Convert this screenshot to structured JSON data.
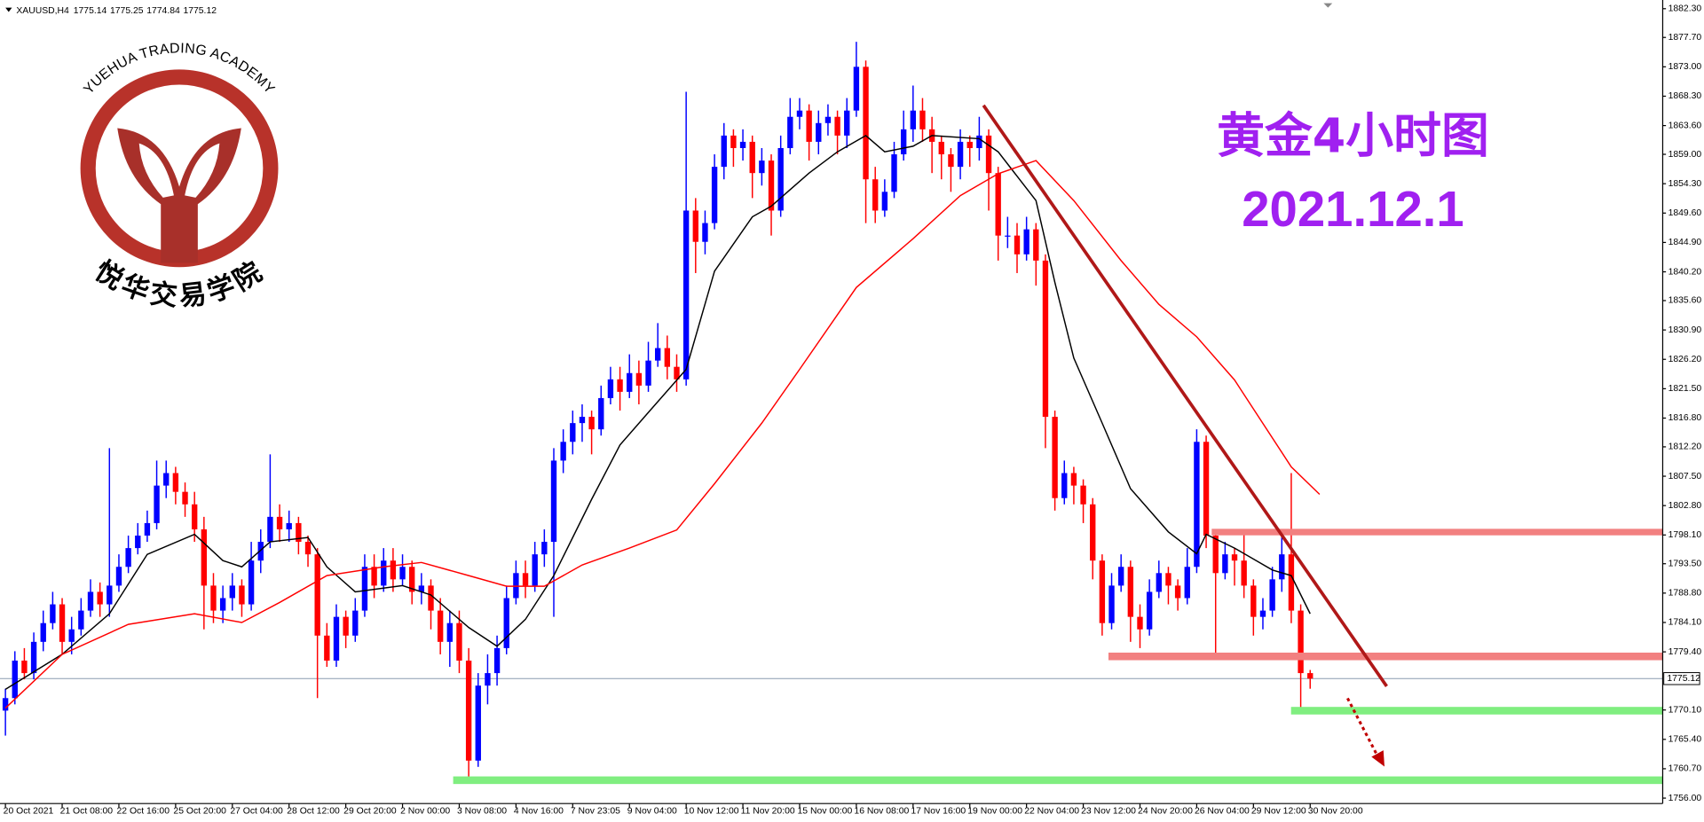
{
  "chart_data": {
    "type": "candlestick",
    "symbol": "XAUUSD,H4",
    "header_prices": [
      1775.14,
      1775.25,
      1774.84,
      1775.12
    ],
    "title": "黄金4小时图",
    "subtitle": "2021.12.1",
    "up_color": "#0000ff",
    "down_color": "#ff0000",
    "ylim": [
      1756,
      1882.3
    ],
    "yticks": [
      {
        "value": 1882.3,
        "label": "1882.30"
      },
      {
        "value": 1877.7,
        "label": "1877.70"
      },
      {
        "value": 1873,
        "label": "1873.00"
      },
      {
        "value": 1868.3,
        "label": "1868.30"
      },
      {
        "value": 1863.6,
        "label": "1863.60"
      },
      {
        "value": 1859,
        "label": "1859.00"
      },
      {
        "value": 1854.3,
        "label": "1854.30"
      },
      {
        "value": 1849.6,
        "label": "1849.60"
      },
      {
        "value": 1844.9,
        "label": "1844.90"
      },
      {
        "value": 1840.2,
        "label": "1840.20"
      },
      {
        "value": 1835.6,
        "label": "1835.60"
      },
      {
        "value": 1830.9,
        "label": "1830.90"
      },
      {
        "value": 1826.2,
        "label": "1826.20"
      },
      {
        "value": 1821.5,
        "label": "1821.50"
      },
      {
        "value": 1816.8,
        "label": "1816.80"
      },
      {
        "value": 1812.2,
        "label": "1812.20"
      },
      {
        "value": 1807.5,
        "label": "1807.50"
      },
      {
        "value": 1802.8,
        "label": "1802.80"
      },
      {
        "value": 1798.1,
        "label": "1798.10"
      },
      {
        "value": 1793.5,
        "label": "1793.50"
      },
      {
        "value": 1788.8,
        "label": "1788.80"
      },
      {
        "value": 1784.1,
        "label": "1784.10"
      },
      {
        "value": 1779.4,
        "label": "1779.40"
      },
      {
        "value": 1770.1,
        "label": "1770.10"
      },
      {
        "value": 1765.4,
        "label": "1765.40"
      },
      {
        "value": 1760.7,
        "label": "1760.70"
      },
      {
        "value": 1756,
        "label": "1756.00"
      }
    ],
    "last_price": 1775.12,
    "xticks": [
      {
        "value": 0,
        "label": "20 Oct 2021"
      },
      {
        "value": 6,
        "label": "21 Oct 08:00"
      },
      {
        "value": 12,
        "label": "22 Oct 16:00"
      },
      {
        "value": 18,
        "label": "25 Oct 20:00"
      },
      {
        "value": 24,
        "label": "27 Oct 04:00"
      },
      {
        "value": 30,
        "label": "28 Oct 12:00"
      },
      {
        "value": 36,
        "label": "29 Oct 20:00"
      },
      {
        "value": 42,
        "label": "2 Nov 00:00"
      },
      {
        "value": 48,
        "label": "3 Nov 08:00"
      },
      {
        "value": 54,
        "label": "4 Nov 16:00"
      },
      {
        "value": 60,
        "label": "7 Nov 23:05"
      },
      {
        "value": 66,
        "label": "9 Nov 04:00"
      },
      {
        "value": 72,
        "label": "10 Nov 12:00"
      },
      {
        "value": 78,
        "label": "11 Nov 20:00"
      },
      {
        "value": 84,
        "label": "15 Nov 00:00"
      },
      {
        "value": 90,
        "label": "16 Nov 08:00"
      },
      {
        "value": 96,
        "label": "17 Nov 16:00"
      },
      {
        "value": 102,
        "label": "19 Nov 00:00"
      },
      {
        "value": 108,
        "label": "22 Nov 04:00"
      },
      {
        "value": 114,
        "label": "23 Nov 12:00"
      },
      {
        "value": 120,
        "label": "24 Nov 20:00"
      },
      {
        "value": 126,
        "label": "26 Nov 04:00"
      },
      {
        "value": 132,
        "label": "29 Nov 12:00"
      },
      {
        "value": 138,
        "label": "30 Nov 20:00"
      }
    ],
    "ohlc": [
      [
        1770,
        1773.5,
        1766,
        1772
      ],
      [
        1772,
        1779.5,
        1771,
        1778
      ],
      [
        1778,
        1780,
        1775,
        1776
      ],
      [
        1776,
        1782.5,
        1775,
        1781
      ],
      [
        1781,
        1786,
        1779.5,
        1784
      ],
      [
        1784,
        1789,
        1783,
        1787
      ],
      [
        1787,
        1788,
        1779,
        1781
      ],
      [
        1781,
        1785,
        1779,
        1783
      ],
      [
        1783,
        1788,
        1782,
        1786
      ],
      [
        1786,
        1791,
        1785,
        1789
      ],
      [
        1789,
        1790.5,
        1785,
        1787
      ],
      [
        1787,
        1812,
        1785,
        1790
      ],
      [
        1790,
        1795,
        1789,
        1793
      ],
      [
        1793,
        1798,
        1792,
        1796
      ],
      [
        1796,
        1800,
        1795,
        1798
      ],
      [
        1798,
        1802,
        1797,
        1800
      ],
      [
        1800,
        1810,
        1799,
        1806
      ],
      [
        1806,
        1810,
        1804,
        1808
      ],
      [
        1808,
        1809,
        1803,
        1805
      ],
      [
        1805,
        1806.5,
        1801,
        1803
      ],
      [
        1803,
        1805,
        1797,
        1799
      ],
      [
        1799,
        1801,
        1783,
        1790
      ],
      [
        1790,
        1792,
        1784,
        1786
      ],
      [
        1786,
        1790,
        1784,
        1788
      ],
      [
        1788,
        1792,
        1786,
        1790
      ],
      [
        1790,
        1791,
        1785,
        1787
      ],
      [
        1787,
        1797,
        1786,
        1794
      ],
      [
        1794,
        1799,
        1792,
        1797
      ],
      [
        1797,
        1811,
        1796,
        1801
      ],
      [
        1801,
        1803,
        1797,
        1799
      ],
      [
        1799,
        1802,
        1797,
        1800
      ],
      [
        1800,
        1801,
        1795,
        1797
      ],
      [
        1797,
        1798,
        1793,
        1795
      ],
      [
        1795,
        1796,
        1772,
        1782
      ],
      [
        1782,
        1784,
        1777,
        1778
      ],
      [
        1778,
        1787,
        1777,
        1785
      ],
      [
        1785,
        1786,
        1780,
        1782
      ],
      [
        1782,
        1788,
        1781,
        1786
      ],
      [
        1786,
        1795,
        1785,
        1793
      ],
      [
        1793,
        1795,
        1788,
        1790
      ],
      [
        1790,
        1796,
        1789,
        1794
      ],
      [
        1794,
        1796,
        1789,
        1791
      ],
      [
        1791,
        1795,
        1790,
        1793
      ],
      [
        1793,
        1794,
        1787,
        1789
      ],
      [
        1789,
        1792,
        1787,
        1790
      ],
      [
        1790,
        1791,
        1783,
        1786
      ],
      [
        1786,
        1788,
        1779,
        1781
      ],
      [
        1781,
        1786,
        1777,
        1784
      ],
      [
        1784,
        1786,
        1776,
        1778
      ],
      [
        1778,
        1780,
        1759,
        1762
      ],
      [
        1762,
        1776,
        1761,
        1774
      ],
      [
        1774,
        1779,
        1771,
        1776
      ],
      [
        1776,
        1782,
        1774,
        1780
      ],
      [
        1780,
        1790,
        1779,
        1788
      ],
      [
        1788,
        1794,
        1787,
        1792
      ],
      [
        1792,
        1794,
        1788,
        1790
      ],
      [
        1790,
        1797,
        1789,
        1795
      ],
      [
        1795,
        1799,
        1793,
        1797
      ],
      [
        1797,
        1812,
        1785,
        1810
      ],
      [
        1810,
        1815,
        1808,
        1813
      ],
      [
        1813,
        1818,
        1811,
        1816
      ],
      [
        1816,
        1819,
        1813,
        1817
      ],
      [
        1817,
        1818,
        1811,
        1815
      ],
      [
        1815,
        1822,
        1814,
        1820
      ],
      [
        1820,
        1825,
        1819,
        1823
      ],
      [
        1823,
        1825,
        1818,
        1821
      ],
      [
        1821,
        1827,
        1820,
        1824
      ],
      [
        1824,
        1826,
        1819,
        1822
      ],
      [
        1822,
        1829,
        1821,
        1826
      ],
      [
        1826,
        1832,
        1825,
        1828
      ],
      [
        1828,
        1830,
        1823,
        1825
      ],
      [
        1825,
        1827,
        1821,
        1823
      ],
      [
        1823,
        1869,
        1822,
        1850
      ],
      [
        1850,
        1852,
        1840,
        1845
      ],
      [
        1845,
        1850,
        1843,
        1848
      ],
      [
        1848,
        1859,
        1847,
        1857
      ],
      [
        1857,
        1864,
        1855,
        1862
      ],
      [
        1862,
        1863,
        1857,
        1860
      ],
      [
        1860,
        1863,
        1858,
        1861
      ],
      [
        1861,
        1862,
        1852,
        1856
      ],
      [
        1856,
        1860,
        1854,
        1858
      ],
      [
        1858,
        1859,
        1846,
        1850
      ],
      [
        1850,
        1862,
        1849,
        1860
      ],
      [
        1860,
        1868,
        1859,
        1865
      ],
      [
        1865,
        1868,
        1863,
        1866
      ],
      [
        1866,
        1867,
        1858,
        1861
      ],
      [
        1861,
        1866,
        1859,
        1864
      ],
      [
        1864,
        1867,
        1862,
        1865
      ],
      [
        1865,
        1866,
        1859,
        1862
      ],
      [
        1862,
        1868,
        1860,
        1866
      ],
      [
        1866,
        1877,
        1865,
        1873
      ],
      [
        1873,
        1874,
        1848,
        1855
      ],
      [
        1855,
        1857,
        1848,
        1850
      ],
      [
        1850,
        1855,
        1849,
        1853
      ],
      [
        1853,
        1861,
        1852,
        1859
      ],
      [
        1859,
        1866,
        1858,
        1863
      ],
      [
        1863,
        1870,
        1861,
        1866
      ],
      [
        1866,
        1868,
        1861,
        1863
      ],
      [
        1863,
        1865,
        1856,
        1861
      ],
      [
        1861,
        1862,
        1855,
        1859
      ],
      [
        1859,
        1860,
        1853,
        1857
      ],
      [
        1857,
        1863,
        1855,
        1861
      ],
      [
        1861,
        1862,
        1857,
        1860
      ],
      [
        1860,
        1865,
        1858,
        1862
      ],
      [
        1862,
        1863,
        1850,
        1856
      ],
      [
        1856,
        1857,
        1842,
        1846
      ],
      [
        1846,
        1849,
        1844,
        1846
      ],
      [
        1846,
        1848,
        1840,
        1843
      ],
      [
        1843,
        1849,
        1842,
        1847
      ],
      [
        1847,
        1848,
        1838,
        1842
      ],
      [
        1842,
        1843,
        1812,
        1817
      ],
      [
        1817,
        1818,
        1802,
        1804
      ],
      [
        1804,
        1810,
        1803,
        1808
      ],
      [
        1808,
        1809,
        1803,
        1806
      ],
      [
        1806,
        1807,
        1800,
        1803
      ],
      [
        1803,
        1804,
        1791,
        1794
      ],
      [
        1794,
        1795,
        1782,
        1784
      ],
      [
        1784,
        1792,
        1783,
        1790
      ],
      [
        1790,
        1795,
        1789,
        1793
      ],
      [
        1793,
        1794,
        1781,
        1785
      ],
      [
        1785,
        1787,
        1780,
        1783
      ],
      [
        1783,
        1791,
        1782,
        1789
      ],
      [
        1789,
        1794,
        1788,
        1792
      ],
      [
        1792,
        1793,
        1787,
        1790
      ],
      [
        1790,
        1791,
        1786,
        1788
      ],
      [
        1788,
        1796,
        1787,
        1793
      ],
      [
        1793,
        1815,
        1792,
        1813
      ],
      [
        1813,
        1814,
        1796,
        1798
      ],
      [
        1798,
        1799,
        1779,
        1792
      ],
      [
        1792,
        1797,
        1791,
        1795
      ],
      [
        1795,
        1796,
        1790,
        1794
      ],
      [
        1794,
        1799,
        1788,
        1790
      ],
      [
        1790,
        1791,
        1782,
        1785
      ],
      [
        1785,
        1788,
        1783,
        1786
      ],
      [
        1786,
        1793,
        1785,
        1791
      ],
      [
        1791,
        1798,
        1789,
        1795
      ],
      [
        1795,
        1808,
        1784,
        1786
      ],
      [
        1786,
        1787,
        1770,
        1776
      ],
      [
        1776,
        1776.5,
        1773.5,
        1775.12
      ]
    ],
    "ma": [
      {
        "color": "#000000",
        "x": [
          0,
          6,
          11,
          15,
          20,
          23,
          25,
          28,
          32,
          34,
          37,
          42,
          45,
          49,
          52,
          55,
          58,
          62,
          65,
          68,
          72,
          75,
          79,
          81,
          85,
          88,
          91,
          93,
          96,
          98,
          103,
          105,
          109,
          111,
          113,
          116,
          119,
          123,
          126,
          127,
          130,
          134,
          136,
          138
        ],
        "values": [
          1773.4,
          1779,
          1785.5,
          1795,
          1798.2,
          1794,
          1793,
          1797,
          1797.7,
          1793,
          1789,
          1790,
          1788.5,
          1783.3,
          1780.3,
          1784.6,
          1791.6,
          1803.8,
          1812.5,
          1817.7,
          1824.6,
          1840.3,
          1849,
          1850.7,
          1856,
          1859.4,
          1862,
          1859.4,
          1860.3,
          1862,
          1861.5,
          1859.4,
          1851.6,
          1838.5,
          1826.4,
          1816,
          1805.5,
          1798.6,
          1795.1,
          1798.2,
          1796,
          1792.5,
          1791.6,
          1785.5
        ]
      },
      {
        "color": "#ff0000",
        "x": [
          0,
          6,
          13,
          20,
          25,
          29,
          34,
          40,
          44,
          49,
          53,
          57,
          61,
          66,
          71,
          75,
          80,
          84,
          90,
          96,
          101,
          105,
          109,
          113,
          118,
          122,
          126,
          130,
          136,
          139
        ],
        "values": [
          1770.4,
          1779,
          1783.8,
          1785.5,
          1784.1,
          1787.3,
          1791.6,
          1793,
          1793.7,
          1791.6,
          1789.9,
          1789.9,
          1793.3,
          1796,
          1798.9,
          1806.3,
          1816,
          1824.6,
          1837.7,
          1845.5,
          1852.4,
          1855.9,
          1858,
          1851.6,
          1842,
          1835,
          1829.8,
          1822.9,
          1809,
          1804.6
        ]
      }
    ]
  },
  "logo": {
    "name": "YUEHUA TRADING ACADEMY",
    "chinese": "悦华交易学院"
  }
}
